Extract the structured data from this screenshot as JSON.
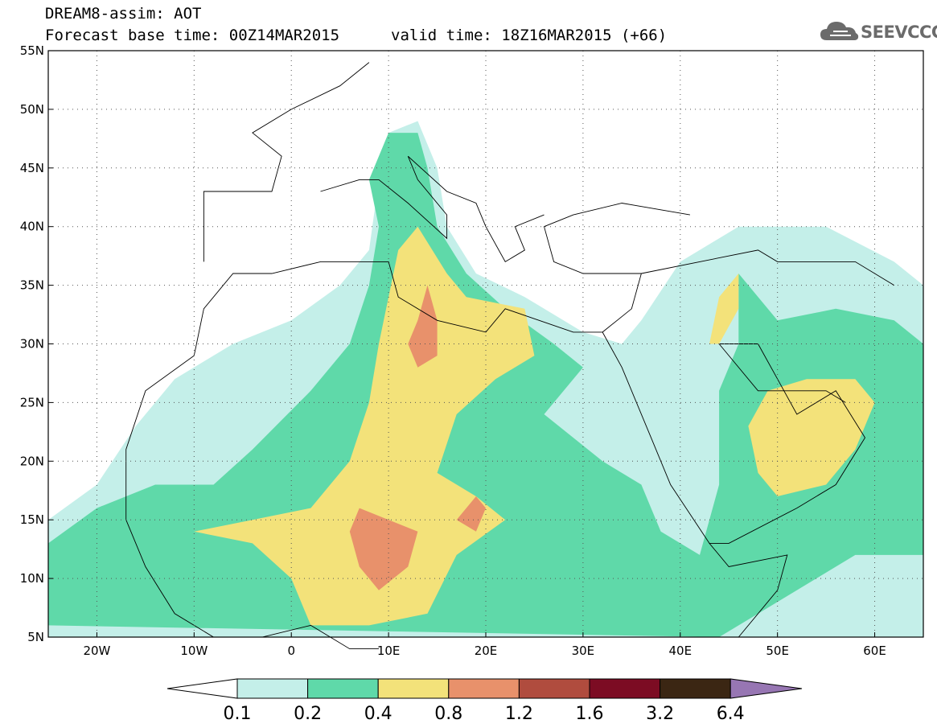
{
  "header": {
    "line1": "DREAM8-assim: AOT",
    "base_label": "Forecast base time: 00Z14MAR2015",
    "valid_label": "valid time: 18Z16MAR2015 (+66)"
  },
  "logo": {
    "text": "SEEVCCC",
    "icon": "cloud-icon"
  },
  "map": {
    "lon_range": [
      -25,
      65
    ],
    "lat_range": [
      5,
      55
    ],
    "lon_ticks": [
      {
        "v": -20,
        "label": "20W"
      },
      {
        "v": -10,
        "label": "10W"
      },
      {
        "v": 0,
        "label": "0"
      },
      {
        "v": 10,
        "label": "10E"
      },
      {
        "v": 20,
        "label": "20E"
      },
      {
        "v": 30,
        "label": "30E"
      },
      {
        "v": 40,
        "label": "40E"
      },
      {
        "v": 50,
        "label": "50E"
      },
      {
        "v": 60,
        "label": "60E"
      }
    ],
    "lat_ticks": [
      {
        "v": 5,
        "label": "5N"
      },
      {
        "v": 10,
        "label": "10N"
      },
      {
        "v": 15,
        "label": "15N"
      },
      {
        "v": 20,
        "label": "20N"
      },
      {
        "v": 25,
        "label": "25N"
      },
      {
        "v": 30,
        "label": "30N"
      },
      {
        "v": 35,
        "label": "35N"
      },
      {
        "v": 40,
        "label": "40N"
      },
      {
        "v": 45,
        "label": "45N"
      },
      {
        "v": 50,
        "label": "50N"
      },
      {
        "v": 55,
        "label": "55N"
      }
    ]
  },
  "colorbar": {
    "ticks": [
      "0.1",
      "0.2",
      "0.4",
      "0.8",
      "1.2",
      "1.6",
      "3.2",
      "6.4"
    ],
    "colors": [
      "#c4efe9",
      "#5fd9a9",
      "#f3e27a",
      "#e8916b",
      "#b04c3e",
      "#7c0c23",
      "#3b2613",
      "#9776b3"
    ],
    "under_color": "#ffffff"
  }
}
